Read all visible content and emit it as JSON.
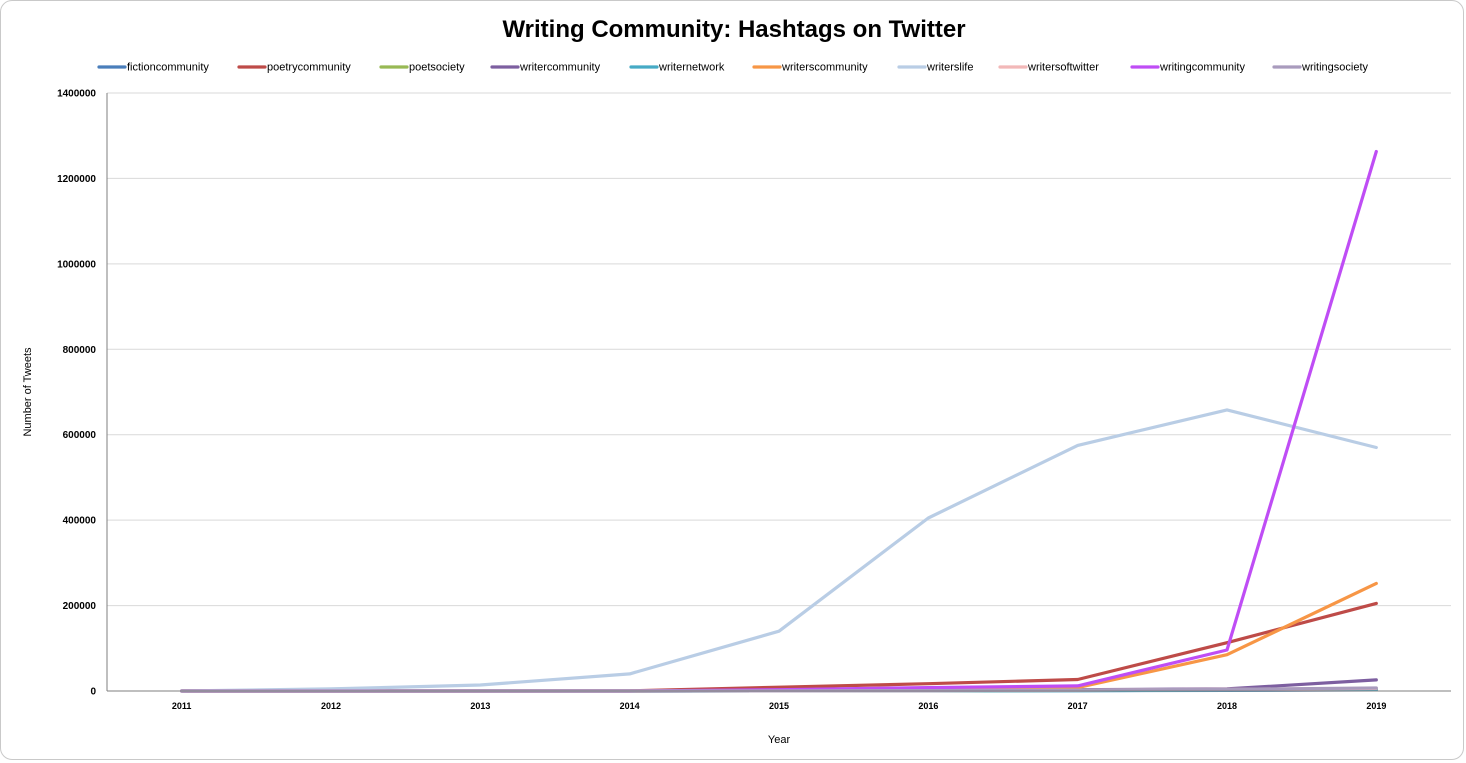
{
  "chart_data": {
    "type": "line",
    "title": "Writing Community: Hashtags on Twitter",
    "xlabel": "Year",
    "ylabel": "Number of Tweets",
    "categories": [
      "2011",
      "2012",
      "2013",
      "2014",
      "2015",
      "2016",
      "2017",
      "2018",
      "2019"
    ],
    "ylim": [
      0,
      1400000
    ],
    "yticks": [
      0,
      200000,
      400000,
      600000,
      800000,
      1000000,
      1200000,
      1400000
    ],
    "grid": true,
    "legend_position": "top",
    "series": [
      {
        "name": "fictioncommunity",
        "color": "#4a7ebb",
        "values": [
          0,
          0,
          0,
          0,
          200,
          400,
          800,
          1500,
          2500
        ]
      },
      {
        "name": "poetrycommunity",
        "color": "#be4b48",
        "values": [
          0,
          0,
          0,
          500,
          9000,
          17000,
          27000,
          113000,
          205000
        ]
      },
      {
        "name": "poetsociety",
        "color": "#98b954",
        "values": [
          0,
          0,
          0,
          0,
          300,
          800,
          1500,
          3000,
          5000
        ]
      },
      {
        "name": "writercommunity",
        "color": "#7d5fa0",
        "values": [
          0,
          0,
          0,
          0,
          500,
          1500,
          3000,
          5000,
          26000
        ]
      },
      {
        "name": "writernetwork",
        "color": "#46aac5",
        "values": [
          0,
          0,
          0,
          0,
          200,
          500,
          1000,
          2000,
          3000
        ]
      },
      {
        "name": "writerscommunity",
        "color": "#f79646",
        "values": [
          0,
          0,
          0,
          0,
          2000,
          5000,
          8000,
          85000,
          252000
        ]
      },
      {
        "name": "writerslife",
        "color": "#b9cde5",
        "values": [
          0,
          5000,
          14000,
          40000,
          140000,
          405000,
          575000,
          658000,
          570000
        ]
      },
      {
        "name": "writersoftwitter",
        "color": "#f2b8b8",
        "values": [
          0,
          0,
          0,
          0,
          500,
          1000,
          2000,
          4000,
          6000
        ]
      },
      {
        "name": "writingcommunity",
        "color": "#bf4df5",
        "values": [
          0,
          0,
          0,
          0,
          3000,
          8000,
          12000,
          96000,
          1263000
        ]
      },
      {
        "name": "writingsociety",
        "color": "#a99bbd",
        "values": [
          0,
          0,
          0,
          0,
          500,
          1000,
          2000,
          4000,
          7000
        ]
      }
    ]
  }
}
